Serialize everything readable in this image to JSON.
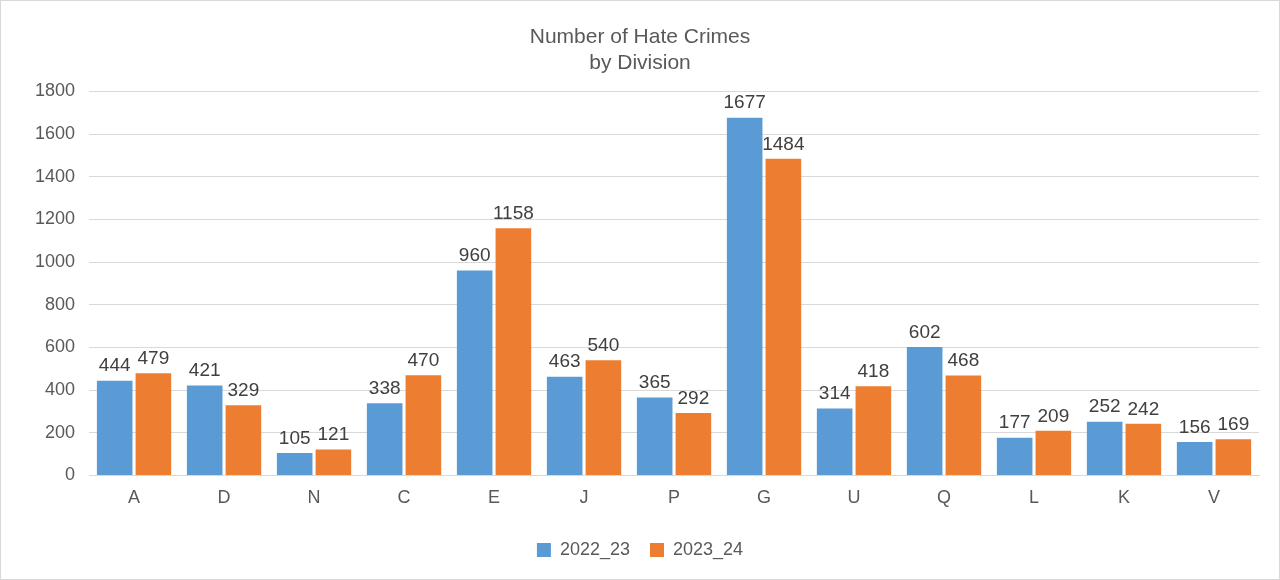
{
  "chart_data": {
    "type": "bar",
    "title": "Number of Hate Crimes\nby Division",
    "categories": [
      "A",
      "D",
      "N",
      "C",
      "E",
      "J",
      "P",
      "G",
      "U",
      "Q",
      "L",
      "K",
      "V"
    ],
    "series": [
      {
        "name": "2022_23",
        "color": "#5b9bd5",
        "values": [
          444,
          421,
          105,
          338,
          960,
          463,
          365,
          1677,
          314,
          602,
          177,
          252,
          156
        ]
      },
      {
        "name": "2023_24",
        "color": "#ed7d31",
        "values": [
          479,
          329,
          121,
          470,
          1158,
          540,
          292,
          1484,
          418,
          468,
          209,
          242,
          169
        ]
      }
    ],
    "ylim": [
      0,
      1800
    ],
    "yticks": [
      0,
      200,
      400,
      600,
      800,
      1000,
      1200,
      1400,
      1600,
      1800
    ],
    "grid": "y",
    "legend": "bottom",
    "data_labels": true
  }
}
